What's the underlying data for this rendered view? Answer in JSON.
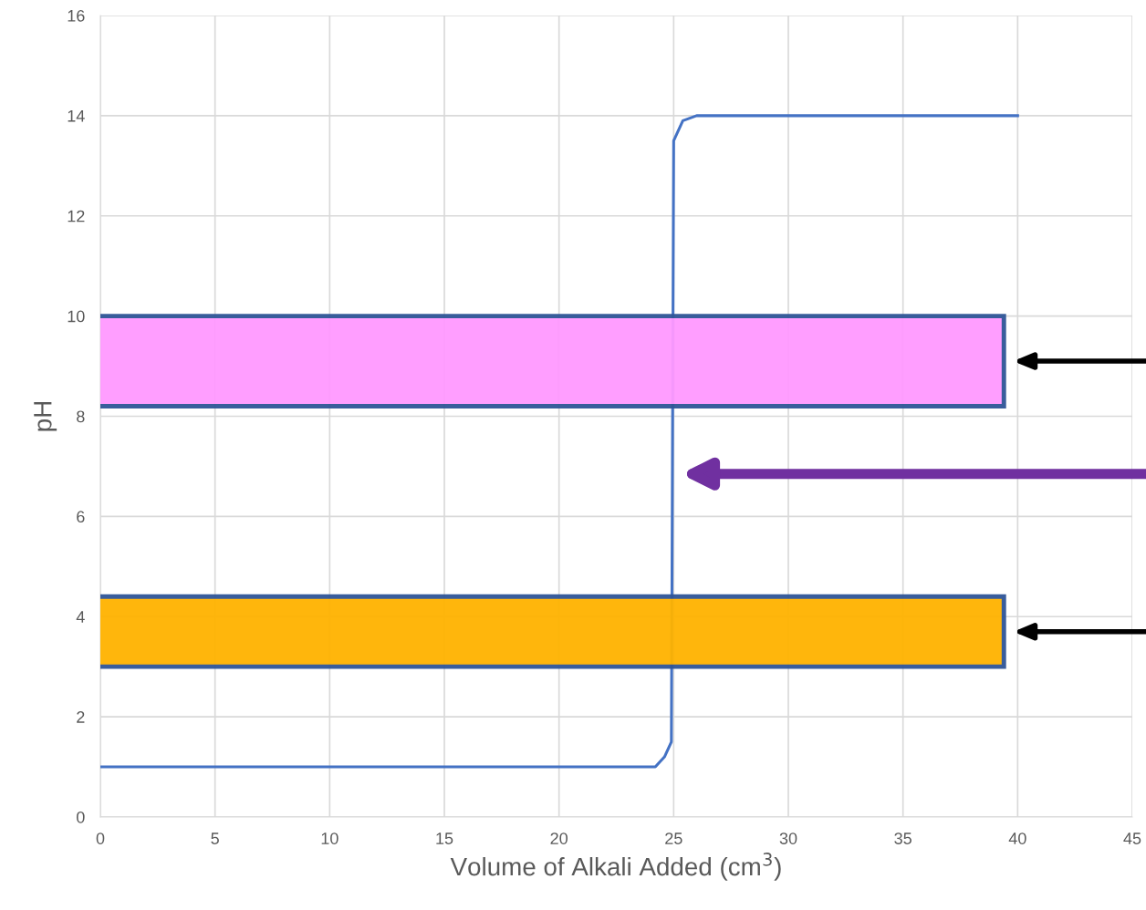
{
  "chart_data": {
    "type": "line",
    "xlabel": "Volume of Alkali Added (cm$^{3}$)",
    "ylabel": "pH",
    "series": [
      {
        "color": "#4472c4",
        "x": [
          0,
          24.2,
          24.6,
          24.9,
          25.0,
          25.4,
          26,
          40
        ],
        "values": [
          1,
          1,
          1.2,
          1.5,
          13.5,
          13.9,
          14,
          14
        ]
      }
    ],
    "bands": [
      {
        "axis": "y",
        "from": 8.2,
        "to": 10,
        "color": "#ff99ff"
      },
      {
        "axis": "y",
        "from": 3.0,
        "to": 4.4,
        "color": "#ffb300"
      }
    ],
    "xlim": [
      0,
      45
    ],
    "ylim": [
      0,
      16
    ],
    "xticks": [
      0,
      5,
      10,
      15,
      20,
      25,
      30,
      35,
      40,
      45
    ],
    "yticks": [
      0,
      2,
      4,
      6,
      8,
      10,
      12,
      14,
      16
    ],
    "grid": true,
    "marker": "none",
    "line_style": "solid",
    "legend": false
  }
}
